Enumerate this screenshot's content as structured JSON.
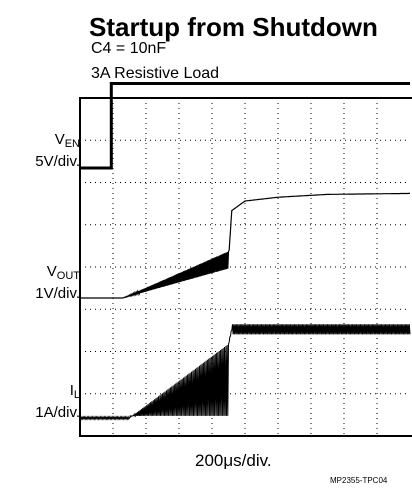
{
  "title": "Startup from Shutdown",
  "subtitle_1": "C4 = 10nF",
  "subtitle_2": "3A Resistive Load",
  "chart_data": {
    "type": "line",
    "title": "Startup from Shutdown",
    "xlabel": "200μs/div.",
    "grid": true,
    "divisions": {
      "x": 10,
      "y": 8
    },
    "channels": [
      {
        "name": "V",
        "sub": "EN",
        "scale": "5V/div."
      },
      {
        "name": "V",
        "sub": "OUT",
        "scale": "1V/div."
      },
      {
        "name": "I",
        "sub": "L",
        "scale": "1A/div."
      }
    ],
    "series": [
      {
        "name": "VEN",
        "x_div": [
          0,
          0.95,
          0.95,
          10
        ],
        "y_div": [
          0,
          0,
          1,
          1
        ]
      },
      {
        "name": "VOUT",
        "x_div": [
          0,
          1.3,
          4.5,
          4.6,
          5.0,
          6.0,
          7.5,
          10
        ],
        "y_div": [
          0,
          0,
          2.0,
          4.6,
          5.1,
          5.3,
          5.45,
          5.5
        ]
      },
      {
        "name": "IL",
        "x_div": [
          0,
          1.5,
          4.5,
          4.6,
          10
        ],
        "y_div": [
          0,
          0,
          2.5,
          3.0,
          3.0
        ]
      }
    ]
  },
  "figure_id": "MP2355-TPC04"
}
